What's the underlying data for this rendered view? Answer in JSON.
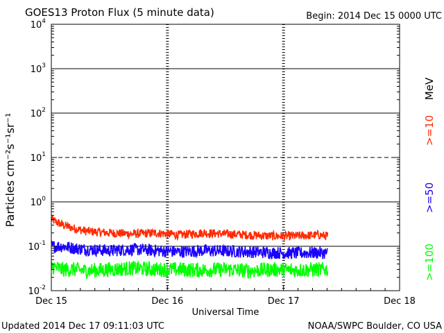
{
  "header": {
    "title": "GOES13 Proton Flux (5 minute data)",
    "begin": "Begin: 2014 Dec 15 0000 UTC"
  },
  "footer": {
    "updated": "Updated 2014 Dec 17 09:11:03 UTC",
    "source": "NOAA/SWPC Boulder, CO USA"
  },
  "chart_data": {
    "type": "line",
    "title": "GOES13 Proton Flux (5 minute data)",
    "xlabel": "Universal Time",
    "ylabel": "Particles cm⁻²s⁻¹sr⁻¹",
    "y_scale": "log",
    "ylim": [
      0.01,
      10000
    ],
    "x_ticks": [
      "Dec 15",
      "Dec 16",
      "Dec 17",
      "Dec 18"
    ],
    "x_range_days": [
      0,
      3
    ],
    "y_ticks": [
      {
        "base": "10",
        "exp": "-2"
      },
      {
        "base": "10",
        "exp": "-1"
      },
      {
        "base": "10",
        "exp": "0"
      },
      {
        "base": "10",
        "exp": "1"
      },
      {
        "base": "10",
        "exp": "2"
      },
      {
        "base": "10",
        "exp": "3"
      },
      {
        "base": "10",
        "exp": "4"
      }
    ],
    "unit_label": "MeV",
    "grid": true,
    "dashed_gridline_at": 10,
    "series": [
      {
        "name": ">=10",
        "color": "#ff2a00",
        "x_days": [
          0,
          0.1,
          0.2,
          0.3,
          0.5,
          0.7,
          0.9,
          1.1,
          1.3,
          1.5,
          1.7,
          1.9,
          2.1,
          2.3,
          2.38
        ],
        "values": [
          0.4,
          0.3,
          0.25,
          0.22,
          0.2,
          0.19,
          0.2,
          0.18,
          0.2,
          0.19,
          0.18,
          0.17,
          0.17,
          0.18,
          0.17
        ]
      },
      {
        "name": ">=50",
        "color": "#1a00ff",
        "x_days": [
          0,
          0.1,
          0.2,
          0.3,
          0.5,
          0.7,
          0.9,
          1.1,
          1.3,
          1.5,
          1.7,
          1.9,
          2.1,
          2.3,
          2.38
        ],
        "values": [
          0.1,
          0.1,
          0.09,
          0.085,
          0.08,
          0.085,
          0.08,
          0.075,
          0.08,
          0.078,
          0.075,
          0.072,
          0.07,
          0.072,
          0.07
        ]
      },
      {
        "name": ">=100",
        "color": "#00ff00",
        "x_days": [
          0,
          0.1,
          0.2,
          0.3,
          0.5,
          0.7,
          0.9,
          1.1,
          1.3,
          1.5,
          1.7,
          1.9,
          2.1,
          2.3,
          2.38
        ],
        "values": [
          0.035,
          0.03,
          0.03,
          0.028,
          0.03,
          0.032,
          0.03,
          0.03,
          0.029,
          0.03,
          0.028,
          0.03,
          0.029,
          0.03,
          0.03
        ]
      }
    ]
  }
}
